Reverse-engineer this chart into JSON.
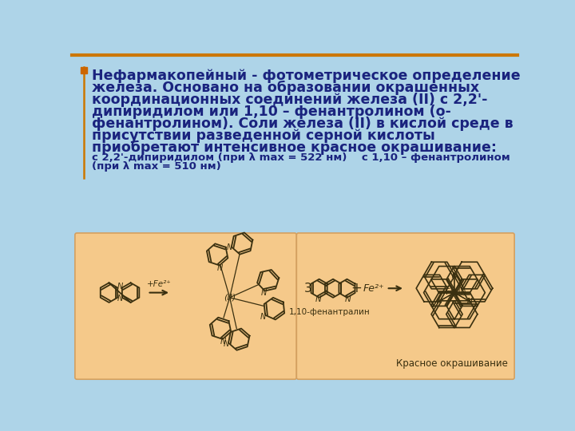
{
  "slide_bg": "#aed4e8",
  "title_bullet_color": "#cc6600",
  "title_text_color": "#1a237e",
  "title_lines": [
    "Нефармакопейный - фотометрическое определение",
    "железа. Основано на образовании окрашенных",
    "координационных соединений железа (II) с 2,2'-",
    "дипиридилом или 1,10 – фенантролином (о-",
    "фенантролином). Соли железа (II) в кислой среде в",
    "присутствии разведенной серной кислоты",
    "приобретают интенсивное красное окрашивание:"
  ],
  "subtitle_line1": "с 2,2'-дипиридилом (при λ max = 522 нм)    с 1,10 – фенантролином",
  "subtitle_line2": "(при λ max = 510 нм)",
  "box_bg": "#f5c98a",
  "box_edge": "#d4a060",
  "label_1_10": "1,10-фенантралин",
  "label_red": "Красное окрашивание",
  "struct_color": "#3a3010",
  "title_fontsize": 12.5,
  "subtitle_fontsize": 9.5,
  "label_fontsize": 8.5
}
